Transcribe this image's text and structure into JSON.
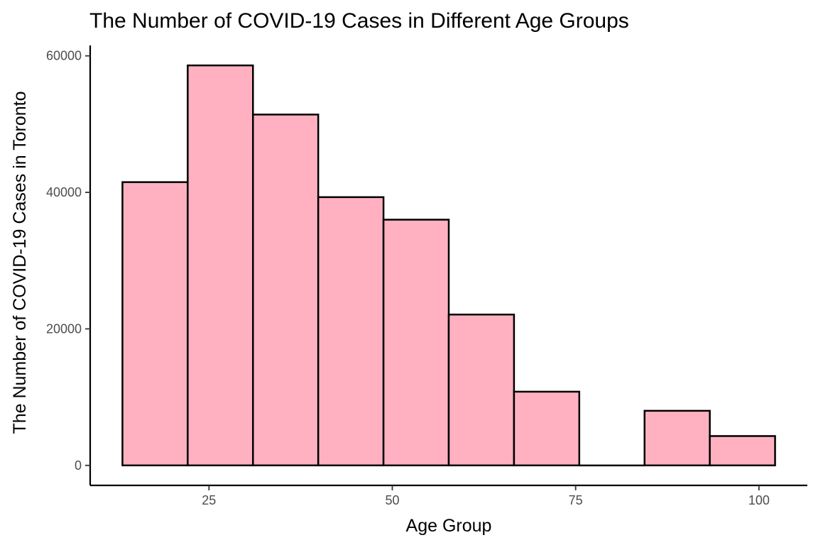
{
  "chart_data": {
    "type": "bar",
    "title": "The Number of COVID-19 Cases in Different Age Groups",
    "xlabel": "Age Group",
    "ylabel": "The Number of COVID-19 Cases in Toronto",
    "bins": [
      {
        "x0": 13.2,
        "x1": 22.1,
        "count": 41500
      },
      {
        "x0": 22.1,
        "x1": 31.0,
        "count": 58600
      },
      {
        "x0": 31.0,
        "x1": 39.9,
        "count": 51400
      },
      {
        "x0": 39.9,
        "x1": 48.8,
        "count": 39300
      },
      {
        "x0": 48.8,
        "x1": 57.7,
        "count": 36000
      },
      {
        "x0": 57.7,
        "x1": 66.6,
        "count": 22100
      },
      {
        "x0": 66.6,
        "x1": 75.5,
        "count": 10800
      },
      {
        "x0": 75.5,
        "x1": 84.4,
        "count": 0
      },
      {
        "x0": 84.4,
        "x1": 93.3,
        "count": 8000
      },
      {
        "x0": 93.3,
        "x1": 102.2,
        "count": 4300
      }
    ],
    "x_ticks": [
      25,
      50,
      75,
      100
    ],
    "y_ticks": [
      0,
      20000,
      40000,
      60000
    ],
    "xlim": [
      8.8,
      106.6
    ],
    "ylim": [
      -2930,
      61530
    ],
    "grid": false,
    "colors": {
      "bar_fill": "#FFB1C1",
      "bar_stroke": "#000000"
    }
  }
}
